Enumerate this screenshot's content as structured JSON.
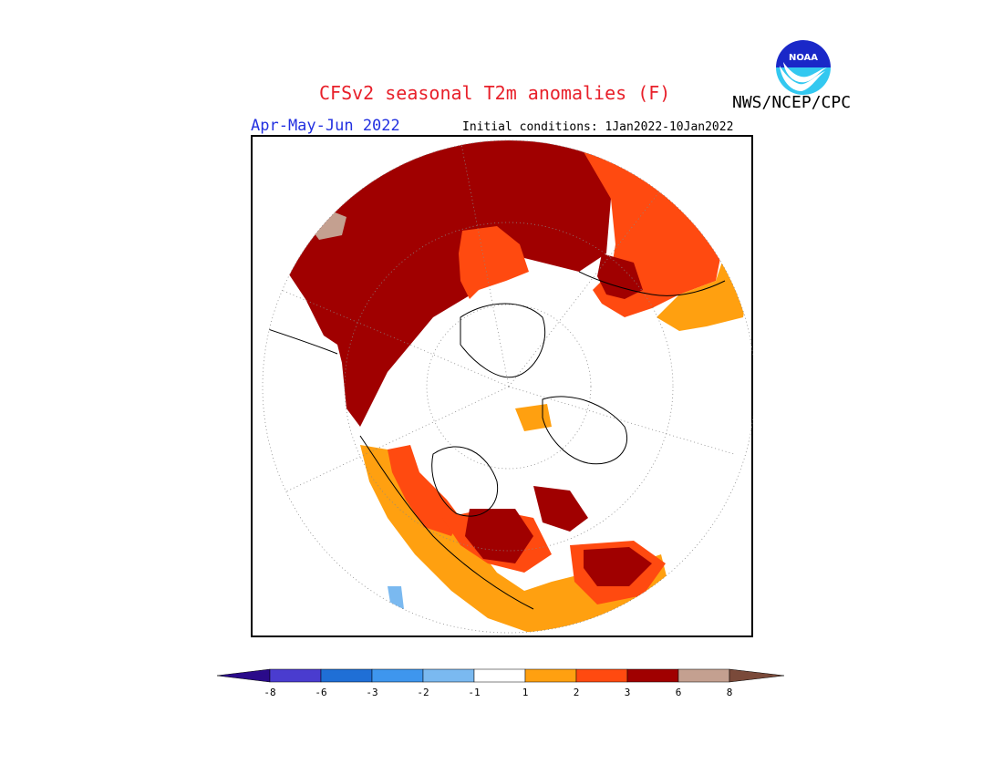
{
  "header": {
    "title": "CFSv2 seasonal T2m anomalies (F)",
    "agency": "NWS/NCEP/CPC",
    "logo_text": "NOAA",
    "season": "Apr-May-Jun 2022",
    "initial_conditions": "Initial conditions: 1Jan2022-10Jan2022"
  },
  "colors": {
    "title": "#e8202a",
    "season": "#2230e0",
    "bin_neg8_below": "#2a0b8a",
    "bin_neg8_neg6": "#4a3ccf",
    "bin_neg6_neg3": "#1f6fd6",
    "bin_neg3_neg2": "#3e96ee",
    "bin_neg2_neg1": "#7ab9f0",
    "bin_neg1_1": "#ffffff",
    "bin_1_2": "#ffa010",
    "bin_2_3": "#ff4a10",
    "bin_3_6": "#a00000",
    "bin_6_8": "#c4a090",
    "bin_8_above": "#7a4a3a"
  },
  "legend": {
    "ticks": [
      "-8",
      "-6",
      "-3",
      "-2",
      "-1",
      "1",
      "2",
      "3",
      "6",
      "8"
    ]
  }
}
